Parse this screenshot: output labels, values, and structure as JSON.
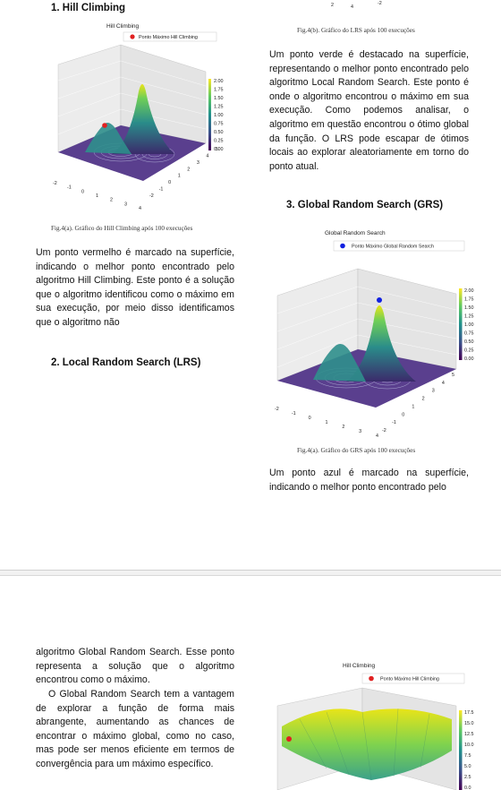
{
  "page1": {
    "left": {
      "heading_hc": "1.  Hill Climbing",
      "figure_hc": {
        "title": "Hill Climbing",
        "legend": "Ponto Máximo Hill Climbing",
        "colorbar_ticks": [
          "2.00",
          "1.75",
          "1.50",
          "1.25",
          "1.00",
          "0.75",
          "0.50",
          "0.25",
          "0.00"
        ],
        "x_ticks": [
          "-2",
          "-1",
          "0",
          "1",
          "2",
          "3",
          "4"
        ],
        "y_ticks": [
          "-2",
          "-1",
          "0",
          "1",
          "2",
          "3",
          "4",
          "5"
        ],
        "caption": "Fig.4(a). Gráfico do Hill Climbing após 100 execuções",
        "marker_color": "#e02020"
      },
      "para_hc": "Um ponto vermelho é marcado na superfície, indicando o melhor ponto encontrado pelo algoritmo Hill Climbing. Este ponto é a solução que o algoritmo identificou como o máximo em sua execução, por meio disso identificamos que o algoritmo não",
      "heading_lrs": "2.  Local Random Search (LRS)"
    },
    "right": {
      "top_ticks": [
        "2",
        "4",
        "-2"
      ],
      "caption_lrs": "Fig.4(b). Gráfico do LRS após 100 execuções",
      "para_lrs": "Um ponto verde é destacado na superfície, representando o melhor ponto encontrado pelo algoritmo Local Random Search. Este ponto é onde o algoritmo encontrou o máximo em sua execução. Como podemos analisar, o algoritmo em questão encontrou o ótimo global da função. O LRS pode escapar de ótimos locais ao explorar aleatoriamente em torno do ponto atual.",
      "heading_grs": "3.  Global Random Search (GRS)",
      "figure_grs": {
        "title": "Global Random Search",
        "legend": "Ponto Máximo Global Random Search",
        "colorbar_ticks": [
          "2.00",
          "1.75",
          "1.50",
          "1.25",
          "1.00",
          "0.75",
          "0.50",
          "0.25",
          "0.00"
        ],
        "x_ticks": [
          "-2",
          "-1",
          "0",
          "1",
          "2",
          "3",
          "4"
        ],
        "y_ticks": [
          "-2",
          "-1",
          "0",
          "1",
          "2",
          "3",
          "4",
          "5"
        ],
        "caption": "Fig.4(a). Gráfico do GRS após 100 execuções",
        "marker_color": "#1020e0"
      },
      "para_grs": "Um ponto azul é marcado na superfície, indicando o melhor ponto encontrado pelo"
    }
  },
  "page2": {
    "para_grs_cont": "algoritmo Global Random Search. Esse ponto representa a solução que o algoritmo encontrou como o máximo.",
    "para_grs_adv": "O Global Random Search tem a vantagem de explorar a função de forma mais abrangente, aumentando as chances de encontrar o máximo global, como no caso, mas pode ser menos eficiente em termos de convergência para um máximo específico.",
    "figure_hc2": {
      "title": "Hill Climbing",
      "legend": "Ponto Máximo Hill Climbing",
      "colorbar_ticks": [
        "17.5",
        "15.0",
        "12.5",
        "10.0",
        "7.5",
        "5.0",
        "2.5",
        "0.0"
      ],
      "marker_color": "#e02020"
    }
  }
}
